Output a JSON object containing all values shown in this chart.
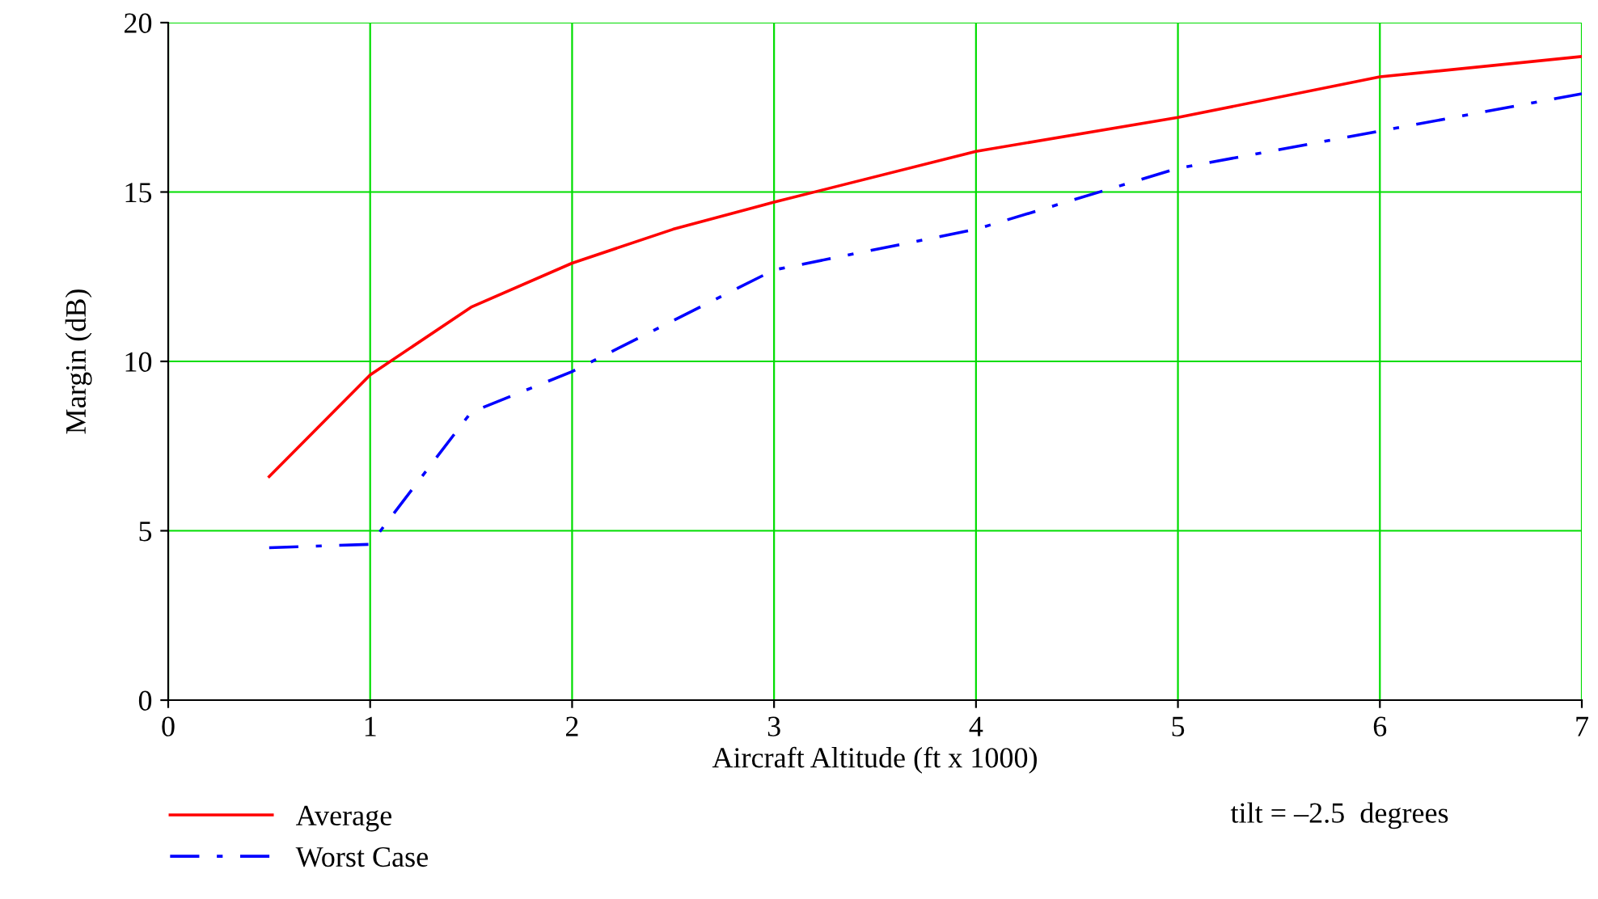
{
  "chart_data": {
    "type": "line",
    "xlabel": "Aircraft Altitude (ft x 1000)",
    "ylabel": "Margin (dB)",
    "x": [
      0.5,
      1,
      1.5,
      2,
      2.5,
      3,
      4,
      5,
      6,
      7
    ],
    "series": [
      {
        "name": "Average",
        "color": "#ff0000",
        "line_style": "solid",
        "values": [
          6.6,
          9.6,
          11.6,
          12.9,
          13.9,
          14.7,
          16.2,
          17.2,
          18.4,
          19.0
        ]
      },
      {
        "name": "Worst Case",
        "color": "#0000ff",
        "line_style": "dashed",
        "values": [
          4.5,
          4.6,
          8.5,
          9.7,
          11.2,
          12.7,
          13.9,
          15.7,
          16.8,
          17.9
        ]
      }
    ],
    "xlim": [
      0,
      7
    ],
    "xticks": [
      0,
      1,
      2,
      3,
      4,
      5,
      6,
      7
    ],
    "ylim": [
      0,
      20
    ],
    "yticks": [
      0,
      5,
      10,
      15,
      20
    ],
    "grid": true,
    "legend": "bottom left",
    "marker": "none",
    "annotations": [
      "tilt = –2.5  degrees"
    ]
  }
}
